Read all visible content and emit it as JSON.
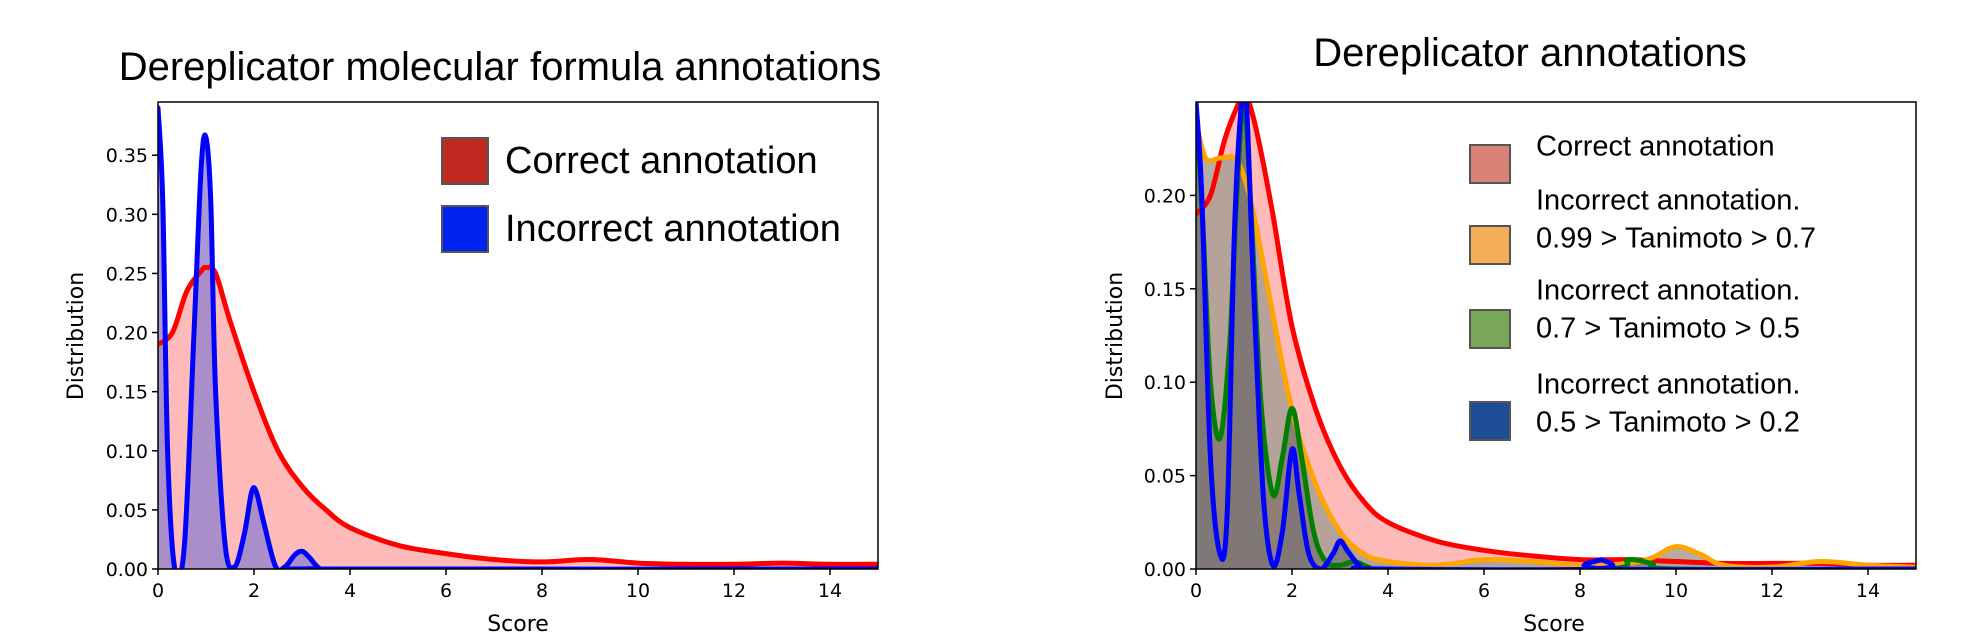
{
  "chart_data": [
    {
      "type": "area",
      "title": "Dereplicator molecular formula annotations",
      "xlabel": "Score",
      "ylabel": "Distribution",
      "xlim": [
        0,
        15
      ],
      "ylim": [
        0,
        0.395
      ],
      "xticks": [
        "0",
        "2",
        "4",
        "6",
        "8",
        "10",
        "12",
        "14"
      ],
      "yticks": [
        "0.00",
        "0.05",
        "0.10",
        "0.15",
        "0.20",
        "0.25",
        "0.30",
        "0.35"
      ],
      "legend_position": "top-right",
      "legend": [
        {
          "label": "Correct annotation",
          "color": "#c0291f"
        },
        {
          "label": "Incorrect annotation",
          "color": "#0022ee"
        }
      ],
      "series": [
        {
          "name": "Correct annotation",
          "line_color": "#ff0000",
          "fill_color": "#ffb3b3",
          "x": [
            0,
            0.3,
            0.6,
            0.9,
            1.0,
            1.2,
            1.5,
            2.0,
            2.5,
            3.0,
            3.5,
            4.0,
            5.0,
            6.0,
            7.0,
            8.0,
            9.0,
            10.0,
            11.0,
            12.0,
            13.0,
            14.0,
            15.0
          ],
          "y": [
            0.19,
            0.2,
            0.235,
            0.252,
            0.255,
            0.25,
            0.21,
            0.15,
            0.1,
            0.07,
            0.05,
            0.035,
            0.02,
            0.013,
            0.008,
            0.006,
            0.008,
            0.005,
            0.004,
            0.004,
            0.005,
            0.004,
            0.004
          ]
        },
        {
          "name": "Incorrect annotation",
          "line_color": "#0000ff",
          "fill_color": "#9a86cc",
          "x": [
            0,
            0.1,
            0.2,
            0.35,
            0.55,
            0.75,
            0.9,
            1.0,
            1.1,
            1.2,
            1.4,
            1.6,
            1.8,
            1.95,
            2.05,
            2.2,
            2.45,
            2.65,
            2.85,
            3.0,
            3.15,
            3.35,
            3.6,
            15.0
          ],
          "y": [
            0.39,
            0.31,
            0.1,
            0.0,
            0.02,
            0.2,
            0.34,
            0.365,
            0.31,
            0.15,
            0.02,
            0.002,
            0.03,
            0.065,
            0.065,
            0.04,
            0.002,
            0.002,
            0.012,
            0.015,
            0.01,
            0.001,
            0.0,
            0.0
          ]
        }
      ]
    },
    {
      "type": "area",
      "title": "Dereplicator annotations",
      "xlabel": "Score",
      "ylabel": "Distribution",
      "xlim": [
        0,
        15
      ],
      "ylim": [
        0,
        0.25
      ],
      "xticks": [
        "0",
        "2",
        "4",
        "6",
        "8",
        "10",
        "12",
        "14"
      ],
      "yticks": [
        "0.00",
        "0.05",
        "0.10",
        "0.15",
        "0.20"
      ],
      "legend_position": "top-right",
      "legend": [
        {
          "label": "Correct annotation",
          "color": "#d98376"
        },
        {
          "label": "Incorrect annotation.",
          "label2": "0.99 > Tanimoto > 0.7",
          "color": "#f5ae57"
        },
        {
          "label": "Incorrect annotation.",
          "label2": "0.7 > Tanimoto > 0.5",
          "color": "#78a857"
        },
        {
          "label": "Incorrect annotation.",
          "label2": "0.5 > Tanimoto > 0.2",
          "color": "#1f4e96"
        }
      ],
      "series": [
        {
          "name": "Correct annotation",
          "line_color": "#ff0000",
          "fill_color": "#ffb3b3",
          "x": [
            0,
            0.3,
            0.6,
            0.9,
            1.0,
            1.1,
            1.3,
            1.6,
            2.0,
            2.5,
            3.0,
            3.5,
            4.0,
            5.0,
            6.0,
            7.0,
            8.0,
            9.0,
            10.0,
            11.0,
            12.0,
            13.0,
            14.0,
            15.0
          ],
          "y": [
            0.19,
            0.2,
            0.23,
            0.25,
            0.252,
            0.25,
            0.23,
            0.19,
            0.13,
            0.085,
            0.055,
            0.036,
            0.025,
            0.015,
            0.01,
            0.007,
            0.005,
            0.005,
            0.004,
            0.003,
            0.003,
            0.003,
            0.002,
            0.002
          ]
        },
        {
          "name": "0.99 > Tanimoto > 0.7",
          "line_color": "#ffa500",
          "fill_color": "#a89e93",
          "x": [
            0,
            0.2,
            0.5,
            0.8,
            1.0,
            1.2,
            1.5,
            2.0,
            2.5,
            3.0,
            3.5,
            4.0,
            5.0,
            6.0,
            7.0,
            8.0,
            9.0,
            9.5,
            10.0,
            10.5,
            11.0,
            12.0,
            13.0,
            14.0,
            15.0
          ],
          "y": [
            0.24,
            0.22,
            0.22,
            0.22,
            0.21,
            0.19,
            0.15,
            0.085,
            0.045,
            0.02,
            0.008,
            0.004,
            0.002,
            0.005,
            0.004,
            0.002,
            0.003,
            0.006,
            0.012,
            0.008,
            0.002,
            0.001,
            0.004,
            0.002,
            0.001
          ]
        },
        {
          "name": "0.7 > Tanimoto > 0.5",
          "line_color": "#008000",
          "fill_color": "#8a7a72",
          "x": [
            0,
            0.15,
            0.3,
            0.5,
            0.7,
            0.85,
            1.0,
            1.15,
            1.35,
            1.6,
            1.8,
            2.0,
            2.2,
            2.45,
            2.7,
            3.0,
            3.3,
            3.6,
            4.0,
            8.5,
            9.0,
            9.5,
            10.0,
            15.0
          ],
          "y": [
            0.25,
            0.18,
            0.1,
            0.07,
            0.12,
            0.2,
            0.25,
            0.19,
            0.09,
            0.04,
            0.06,
            0.086,
            0.06,
            0.02,
            0.004,
            0.002,
            0.004,
            0.001,
            0.0,
            0.0,
            0.005,
            0.003,
            0.0,
            0.0
          ]
        },
        {
          "name": "0.5 > Tanimoto > 0.2",
          "line_color": "#0000ff",
          "fill_color": "#7d7878",
          "x": [
            0,
            0.12,
            0.3,
            0.5,
            0.65,
            0.8,
            0.95,
            1.05,
            1.2,
            1.4,
            1.6,
            1.8,
            2.0,
            2.15,
            2.35,
            2.6,
            2.85,
            3.0,
            3.15,
            3.4,
            3.7,
            8.3,
            8.45,
            8.6,
            15.0
          ],
          "y": [
            0.25,
            0.2,
            0.06,
            0.008,
            0.03,
            0.18,
            0.25,
            0.25,
            0.15,
            0.04,
            0.002,
            0.02,
            0.064,
            0.04,
            0.008,
            0.0,
            0.008,
            0.015,
            0.01,
            0.002,
            0.0,
            0.0,
            0.005,
            0.0,
            0.0
          ]
        }
      ]
    }
  ]
}
